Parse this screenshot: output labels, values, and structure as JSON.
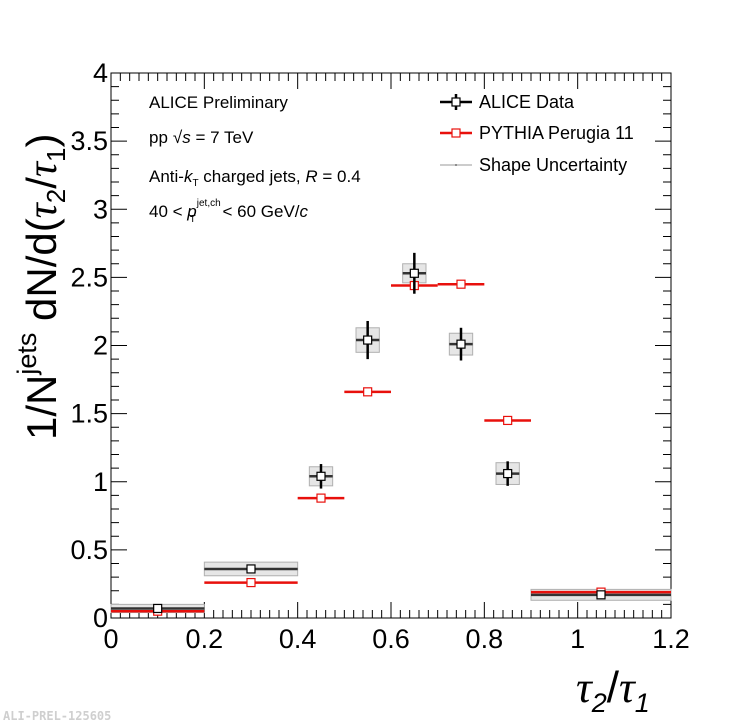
{
  "chart_data": {
    "type": "scatter",
    "title": "",
    "xlabel": "τ2/τ1",
    "xlabel_parts": {
      "tau": "τ",
      "sub2": "2",
      "slash": "/",
      "sub1": "1"
    },
    "ylabel": "1/N^jets dN/d(τ2/τ1)",
    "ylabel_parts": {
      "prefix": "1/N",
      "sup": "jets",
      "mid": " dN/d(",
      "tau": "τ",
      "sub2": "2",
      "slash": "/",
      "sub1": "1",
      "close": ")"
    },
    "xlim": [
      0,
      1.2
    ],
    "ylim": [
      0,
      4
    ],
    "x_tick_labels": [
      "0",
      "0.2",
      "0.4",
      "0.6",
      "0.8",
      "1",
      "1.2"
    ],
    "y_tick_labels": [
      "0",
      "0.5",
      "1",
      "1.5",
      "2",
      "2.5",
      "3",
      "3.5",
      "4"
    ],
    "annotations": {
      "line1": "ALICE Preliminary",
      "line2": {
        "pp": "pp",
        "sqrt": "√",
        "s": "s",
        "rest": " = 7 TeV"
      },
      "line3": {
        "pre": "Anti-",
        "k": "k",
        "ksub": "T",
        "mid": "  charged jets, ",
        "R": "R",
        "rest": " = 0.4"
      },
      "line4": {
        "pre": "40 < ",
        "p": "p",
        "sup": "jet,ch",
        "sub": "T",
        "mid": " < 60 GeV/",
        "c": "c"
      }
    },
    "legend": [
      {
        "label": "ALICE Data",
        "color": "#000000"
      },
      {
        "label": "PYTHIA Perugia 11",
        "color": "#e8100c"
      },
      {
        "label": "Shape Uncertainty",
        "color": "#aaaaaa"
      }
    ],
    "series": [
      {
        "name": "ALICE Data",
        "color": "#111111",
        "bins": [
          [
            0.0,
            0.2
          ],
          [
            0.2,
            0.4
          ],
          [
            0.4,
            0.5
          ],
          [
            0.5,
            0.6
          ],
          [
            0.6,
            0.7
          ],
          [
            0.7,
            0.8
          ],
          [
            0.8,
            0.9
          ],
          [
            0.9,
            1.2
          ]
        ],
        "x": [
          0.1,
          0.3,
          0.45,
          0.55,
          0.65,
          0.75,
          0.85,
          1.05
        ],
        "values": [
          0.07,
          0.36,
          1.04,
          2.04,
          2.53,
          2.01,
          1.06,
          0.17
        ],
        "stat_err": [
          0.02,
          0.03,
          0.09,
          0.14,
          0.15,
          0.12,
          0.09,
          0.02
        ],
        "shape_unc": [
          0.03,
          0.05,
          0.07,
          0.09,
          0.07,
          0.08,
          0.08,
          0.04
        ]
      },
      {
        "name": "PYTHIA Perugia 11",
        "color": "#e8100c",
        "bins": [
          [
            0.0,
            0.2
          ],
          [
            0.2,
            0.4
          ],
          [
            0.4,
            0.5
          ],
          [
            0.5,
            0.6
          ],
          [
            0.6,
            0.7
          ],
          [
            0.7,
            0.8
          ],
          [
            0.8,
            0.9
          ],
          [
            0.9,
            1.2
          ]
        ],
        "x": [
          0.1,
          0.3,
          0.45,
          0.55,
          0.65,
          0.75,
          0.85,
          1.05
        ],
        "values": [
          0.05,
          0.26,
          0.88,
          1.66,
          2.44,
          2.45,
          1.45,
          0.19
        ]
      }
    ]
  },
  "footer_label": "ALI-PREL-125605"
}
